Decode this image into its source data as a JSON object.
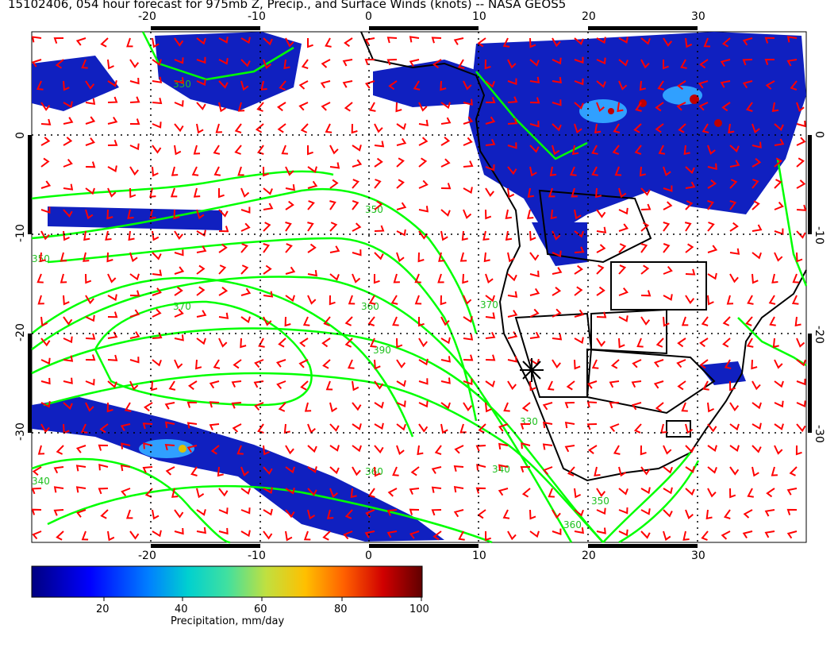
{
  "title": "15102406, 054 hour forecast for 975mb Z, Precip., and Surface Winds (knots) -- NASA GEOS5",
  "map": {
    "lon_ticks": [
      "-20",
      "-10",
      "0",
      "10",
      "20",
      "30"
    ],
    "lat_ticks": [
      "0",
      "-10",
      "-20",
      "-30"
    ],
    "contour_labels": [
      "330",
      "340",
      "350",
      "360",
      "370",
      "390",
      "350",
      "340",
      "360",
      "350",
      "360",
      "370",
      "330"
    ],
    "colors": {
      "contours": "#00ff00",
      "wind_barbs": "#ff0000",
      "coastlines": "#000000",
      "precip_low": "#00008f",
      "precip_high": "#800000"
    }
  },
  "colorbar": {
    "label": "Precipitation, mm/day",
    "ticks": [
      "20",
      "40",
      "60",
      "80",
      "100"
    ]
  }
}
